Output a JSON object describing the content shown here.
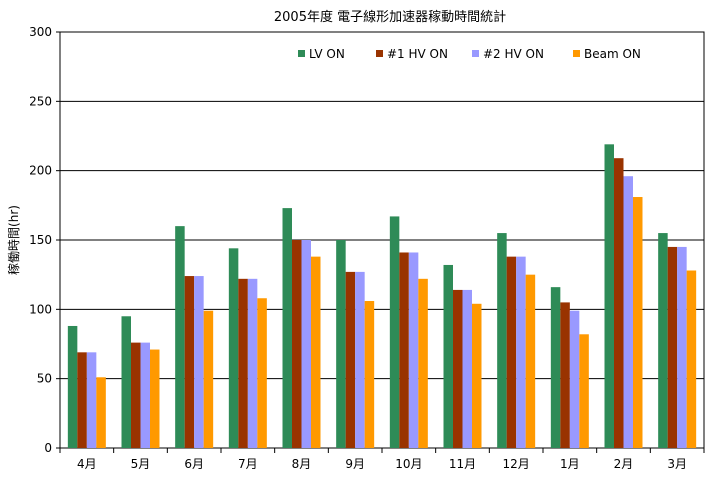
{
  "chart_data": {
    "type": "bar",
    "title": "2005年度 電子線形加速器稼動時間統計",
    "xlabel": "",
    "ylabel": "稼働時間(hr)",
    "ylim": [
      0,
      300
    ],
    "yticks": [
      0,
      50,
      100,
      150,
      200,
      250,
      300
    ],
    "grid": true,
    "legend_position": "top-right",
    "categories": [
      "4月",
      "5月",
      "6月",
      "7月",
      "8月",
      "9月",
      "10月",
      "11月",
      "12月",
      "1月",
      "2月",
      "3月"
    ],
    "series": [
      {
        "name": "LV ON",
        "color": "#2e8b57",
        "values": [
          88,
          95,
          160,
          144,
          173,
          150,
          167,
          132,
          155,
          116,
          219,
          155
        ]
      },
      {
        "name": "#1 HV ON",
        "color": "#993300",
        "values": [
          69,
          76,
          124,
          122,
          150,
          127,
          141,
          114,
          138,
          105,
          209,
          145
        ]
      },
      {
        "name": "#2 HV ON",
        "color": "#9999ff",
        "values": [
          69,
          76,
          124,
          122,
          150,
          127,
          141,
          114,
          138,
          99,
          196,
          145
        ]
      },
      {
        "name": "Beam ON",
        "color": "#ff9900",
        "values": [
          51,
          71,
          99,
          108,
          138,
          106,
          122,
          104,
          125,
          82,
          181,
          128
        ]
      }
    ]
  }
}
